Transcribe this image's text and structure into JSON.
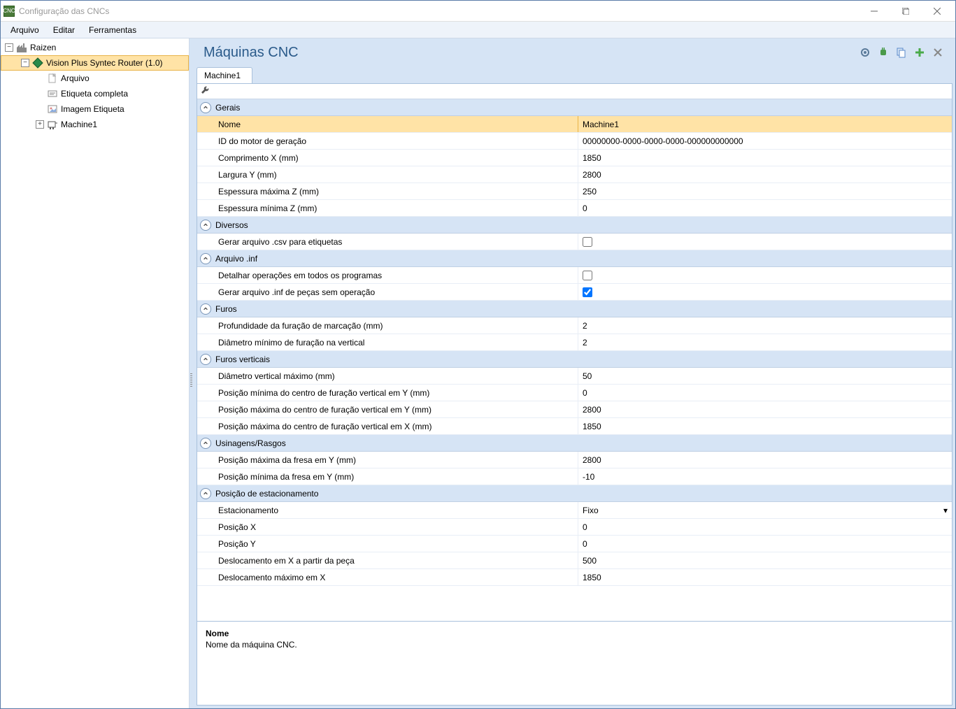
{
  "window": {
    "title": "Configuração das CNCs"
  },
  "menu": {
    "items": [
      "Arquivo",
      "Editar",
      "Ferramentas"
    ]
  },
  "tree": {
    "root": {
      "label": "Raizen",
      "expanded": true
    },
    "child1": {
      "label": "Vision Plus Syntec Router (1.0)",
      "expanded": true,
      "selected": true
    },
    "leaves": [
      {
        "label": "Arquivo",
        "icon": "file"
      },
      {
        "label": "Etiqueta completa",
        "icon": "label"
      },
      {
        "label": "Imagem Etiqueta",
        "icon": "image"
      }
    ],
    "machine": {
      "label": "Machine1",
      "expanded": false
    }
  },
  "main": {
    "title": "Máquinas CNC",
    "tab": "Machine1",
    "groups": [
      {
        "name": "Gerais",
        "rows": [
          {
            "label": "Nome",
            "value": "Machine1",
            "selected": true
          },
          {
            "label": "ID do motor de geração",
            "value": "00000000-0000-0000-0000-000000000000"
          },
          {
            "label": "Comprimento X (mm)",
            "value": "1850"
          },
          {
            "label": "Largura Y (mm)",
            "value": "2800"
          },
          {
            "label": "Espessura máxima Z (mm)",
            "value": "250"
          },
          {
            "label": "Espessura mínima Z (mm)",
            "value": "0"
          }
        ]
      },
      {
        "name": "Diversos",
        "rows": [
          {
            "label": "Gerar arquivo .csv para etiquetas",
            "type": "checkbox",
            "checked": false
          }
        ]
      },
      {
        "name": "Arquivo .inf",
        "rows": [
          {
            "label": "Detalhar operações em todos os programas",
            "type": "checkbox",
            "checked": false
          },
          {
            "label": "Gerar arquivo .inf de peças sem operação",
            "type": "checkbox",
            "checked": true
          }
        ]
      },
      {
        "name": "Furos",
        "rows": [
          {
            "label": "Profundidade da furação de marcação (mm)",
            "value": "2"
          },
          {
            "label": "Diâmetro mínimo de furação na vertical",
            "value": "2"
          }
        ]
      },
      {
        "name": "Furos verticais",
        "rows": [
          {
            "label": "Diâmetro vertical máximo (mm)",
            "value": "50"
          },
          {
            "label": "Posição mínima do centro de furação vertical em Y (mm)",
            "value": "0"
          },
          {
            "label": "Posição máxima do centro de furação vertical em Y (mm)",
            "value": "2800"
          },
          {
            "label": "Posição máxima do centro de furação vertical em X (mm)",
            "value": "1850"
          }
        ]
      },
      {
        "name": "Usinagens/Rasgos",
        "rows": [
          {
            "label": "Posição máxima da fresa em Y (mm)",
            "value": "2800"
          },
          {
            "label": "Posição mínima da fresa em Y (mm)",
            "value": "-10"
          }
        ]
      },
      {
        "name": "Posição de estacionamento",
        "rows": [
          {
            "label": "Estacionamento",
            "value": "Fixo",
            "type": "dropdown"
          },
          {
            "label": "Posição X",
            "value": "0"
          },
          {
            "label": "Posição Y",
            "value": "0"
          },
          {
            "label": "Deslocamento em X a partir da peça",
            "value": "500"
          },
          {
            "label": "Deslocamento máximo em X",
            "value": "1850"
          }
        ]
      }
    ],
    "desc": {
      "title": "Nome",
      "text": "Nome da máquina CNC."
    }
  },
  "colors": {
    "panelBlue": "#d6e4f5",
    "selOrange": "#ffe3a6",
    "headerText": "#2a5a8a"
  }
}
